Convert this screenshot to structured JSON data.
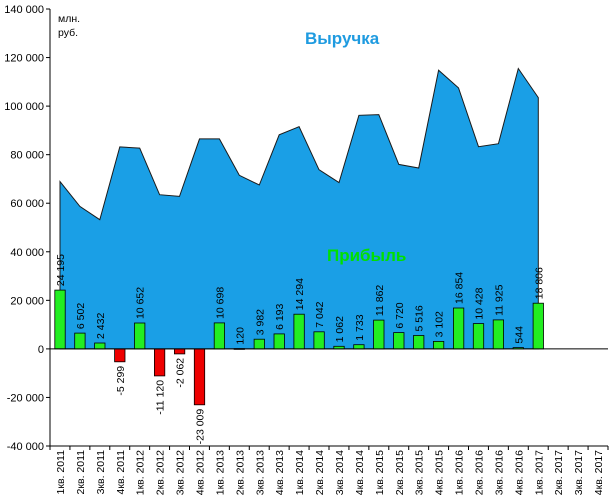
{
  "chart_data": {
    "type": "area+bar",
    "unit_label_lines": [
      "млн.",
      "руб."
    ],
    "series": [
      {
        "name": "Выручка",
        "type": "area",
        "color": "#1a9fe6",
        "values": [
          68900,
          58700,
          53200,
          83200,
          82700,
          63500,
          62800,
          86500,
          86500,
          71500,
          67500,
          88200,
          91500,
          73800,
          68500,
          96200,
          96500,
          76000,
          74500,
          114800,
          107500,
          83300,
          84500,
          115500,
          103500,
          null,
          null,
          null
        ]
      },
      {
        "name": "Прибыль",
        "type": "bar",
        "color_positive": "#22ee22",
        "color_negative": "#ee0000",
        "values": [
          24195,
          6502,
          2432,
          -5299,
          10652,
          -11120,
          -2062,
          -23009,
          10698,
          120,
          3982,
          6193,
          14294,
          7042,
          1062,
          1733,
          11862,
          6720,
          5516,
          3102,
          16854,
          10428,
          11925,
          544,
          18806,
          null,
          null,
          null
        ],
        "labels": [
          "24 195",
          "6 502",
          "2 432",
          "-5 299",
          "10 652",
          "-11 120",
          "-2 062",
          "-23 009",
          "10 698",
          "120",
          "3 982",
          "6 193",
          "14 294",
          "7 042",
          "1 062",
          "1 733",
          "11 862",
          "6 720",
          "5 516",
          "3 102",
          "16 854",
          "10 428",
          "11 925",
          "544",
          "18 806",
          "",
          "",
          ""
        ]
      }
    ],
    "categories": [
      "1кв. 2011",
      "2кв. 2011",
      "3кв. 2011",
      "4кв. 2011",
      "1кв. 2012",
      "2кв. 2012",
      "3кв. 2012",
      "4кв. 2012",
      "1кв. 2013",
      "2кв. 2013",
      "3кв. 2013",
      "4кв. 2013",
      "1кв. 2014",
      "2кв. 2014",
      "3кв. 2014",
      "4кв. 2014",
      "1кв. 2015",
      "2кв. 2015",
      "3кв. 2015",
      "4кв. 2015",
      "1кв. 2016",
      "2кв. 2016",
      "3кв. 2016",
      "4кв. 2016",
      "1кв. 2017",
      "2кв. 2017",
      "3кв. 2017",
      "4кв. 2017"
    ],
    "ylim": [
      -40000,
      140000
    ],
    "ystep": 20000,
    "ytick_labels": [
      "-40 000",
      "-20 000",
      "0",
      "20 000",
      "40 000",
      "60 000",
      "80 000",
      "100 000",
      "120 000",
      "140 000"
    ],
    "grid": false,
    "legend": "none",
    "annotations": [
      "Выручка",
      "Прибыль"
    ]
  }
}
